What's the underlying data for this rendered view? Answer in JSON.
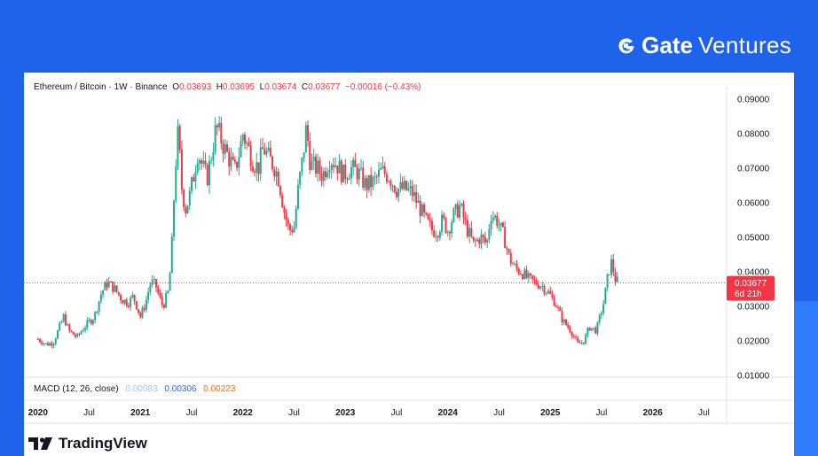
{
  "brand": {
    "logo_word": "Gate",
    "suffix": "Ventures"
  },
  "legend": {
    "symbol": "Ethereum / Bitcoin · 1W · Binance",
    "o_label": "O",
    "o_value": "0.03693",
    "h_label": "H",
    "h_value": "0.03695",
    "l_label": "L",
    "l_value": "0.03674",
    "c_label": "C",
    "c_value": "0.03677",
    "change": "−0.00016 (−0.43%)"
  },
  "price_tag": {
    "price": "0.03677",
    "countdown": "6d 21h"
  },
  "macd": {
    "label": "MACD (12, 26, close)",
    "v1": "0.00083",
    "v2": "0.00306",
    "v3": "0.00223",
    "c1": "#99c9e8",
    "c2": "#2962ff",
    "c3": "#ff6d00"
  },
  "footer": {
    "tradingview": "TradingView"
  },
  "colors": {
    "up": "#22ab94",
    "down": "#f23645",
    "last_line": "#f23645"
  },
  "chart_data": {
    "type": "candlestick",
    "interval": "1W",
    "yaxis_side": "right",
    "ylim": [
      0.01,
      0.09
    ],
    "y_ticks": [
      "0.09000",
      "0.08000",
      "0.07000",
      "0.06000",
      "0.05000",
      "0.04000",
      "0.03000",
      "0.02000",
      "0.01000"
    ],
    "y_tick_values": [
      0.09,
      0.08,
      0.07,
      0.06,
      0.05,
      0.04,
      0.03,
      0.02,
      0.01
    ],
    "x_ticks": [
      "2020",
      "Jul",
      "2021",
      "Jul",
      "2022",
      "Jul",
      "2023",
      "Jul",
      "2024",
      "Jul",
      "2025",
      "Jul",
      "2026",
      "Jul"
    ],
    "x_tick_years": [
      2020.0,
      2020.5,
      2021.0,
      2021.5,
      2022.0,
      2022.5,
      2023.0,
      2023.5,
      2024.0,
      2024.5,
      2025.0,
      2025.5,
      2026.0,
      2026.5
    ],
    "xlim": [
      2019.95,
      2026.6
    ],
    "last_price": 0.03677,
    "close_path": [
      [
        2020.0,
        0.0205
      ],
      [
        2020.08,
        0.019
      ],
      [
        2020.15,
        0.0195
      ],
      [
        2020.25,
        0.027
      ],
      [
        2020.3,
        0.023
      ],
      [
        2020.38,
        0.021
      ],
      [
        2020.45,
        0.024
      ],
      [
        2020.55,
        0.027
      ],
      [
        2020.62,
        0.034
      ],
      [
        2020.68,
        0.037
      ],
      [
        2020.75,
        0.035
      ],
      [
        2020.82,
        0.032
      ],
      [
        2020.88,
        0.031
      ],
      [
        2020.93,
        0.033
      ],
      [
        2021.0,
        0.027
      ],
      [
        2021.05,
        0.031
      ],
      [
        2021.1,
        0.037
      ],
      [
        2021.15,
        0.036
      ],
      [
        2021.18,
        0.033
      ],
      [
        2021.22,
        0.03
      ],
      [
        2021.27,
        0.034
      ],
      [
        2021.3,
        0.043
      ],
      [
        2021.34,
        0.07
      ],
      [
        2021.37,
        0.081
      ],
      [
        2021.4,
        0.065
      ],
      [
        2021.44,
        0.058
      ],
      [
        2021.48,
        0.062
      ],
      [
        2021.52,
        0.068
      ],
      [
        2021.56,
        0.075
      ],
      [
        2021.6,
        0.071
      ],
      [
        2021.65,
        0.067
      ],
      [
        2021.7,
        0.075
      ],
      [
        2021.74,
        0.082
      ],
      [
        2021.78,
        0.079
      ],
      [
        2021.83,
        0.075
      ],
      [
        2021.88,
        0.072
      ],
      [
        2021.92,
        0.069
      ],
      [
        2021.96,
        0.074
      ],
      [
        2022.0,
        0.08
      ],
      [
        2022.05,
        0.076
      ],
      [
        2022.1,
        0.072
      ],
      [
        2022.15,
        0.07
      ],
      [
        2022.2,
        0.076
      ],
      [
        2022.25,
        0.073
      ],
      [
        2022.3,
        0.071
      ],
      [
        2022.35,
        0.067
      ],
      [
        2022.4,
        0.058
      ],
      [
        2022.45,
        0.052
      ],
      [
        2022.5,
        0.053
      ],
      [
        2022.54,
        0.064
      ],
      [
        2022.58,
        0.072
      ],
      [
        2022.62,
        0.082
      ],
      [
        2022.66,
        0.071
      ],
      [
        2022.72,
        0.07
      ],
      [
        2022.78,
        0.068
      ],
      [
        2022.85,
        0.073
      ],
      [
        2022.92,
        0.071
      ],
      [
        2022.98,
        0.068
      ],
      [
        2023.05,
        0.07
      ],
      [
        2023.12,
        0.069
      ],
      [
        2023.2,
        0.065
      ],
      [
        2023.28,
        0.066
      ],
      [
        2023.35,
        0.069
      ],
      [
        2023.42,
        0.068
      ],
      [
        2023.5,
        0.064
      ],
      [
        2023.58,
        0.064
      ],
      [
        2023.65,
        0.063
      ],
      [
        2023.72,
        0.059
      ],
      [
        2023.78,
        0.055
      ],
      [
        2023.85,
        0.052
      ],
      [
        2023.9,
        0.052
      ],
      [
        2023.95,
        0.055
      ],
      [
        2024.0,
        0.052
      ],
      [
        2024.05,
        0.056
      ],
      [
        2024.12,
        0.059
      ],
      [
        2024.18,
        0.053
      ],
      [
        2024.25,
        0.048
      ],
      [
        2024.32,
        0.05
      ],
      [
        2024.38,
        0.048
      ],
      [
        2024.42,
        0.057
      ],
      [
        2024.48,
        0.055
      ],
      [
        2024.55,
        0.05
      ],
      [
        2024.6,
        0.044
      ],
      [
        2024.66,
        0.041
      ],
      [
        2024.72,
        0.04
      ],
      [
        2024.78,
        0.038
      ],
      [
        2024.85,
        0.037
      ],
      [
        2024.92,
        0.036
      ],
      [
        2024.98,
        0.034
      ],
      [
        2025.05,
        0.031
      ],
      [
        2025.12,
        0.026
      ],
      [
        2025.2,
        0.023
      ],
      [
        2025.27,
        0.019
      ],
      [
        2025.33,
        0.02
      ],
      [
        2025.38,
        0.024
      ],
      [
        2025.45,
        0.023
      ],
      [
        2025.52,
        0.031
      ],
      [
        2025.57,
        0.04
      ],
      [
        2025.6,
        0.043
      ],
      [
        2025.63,
        0.038
      ],
      [
        2025.66,
        0.037
      ]
    ]
  }
}
